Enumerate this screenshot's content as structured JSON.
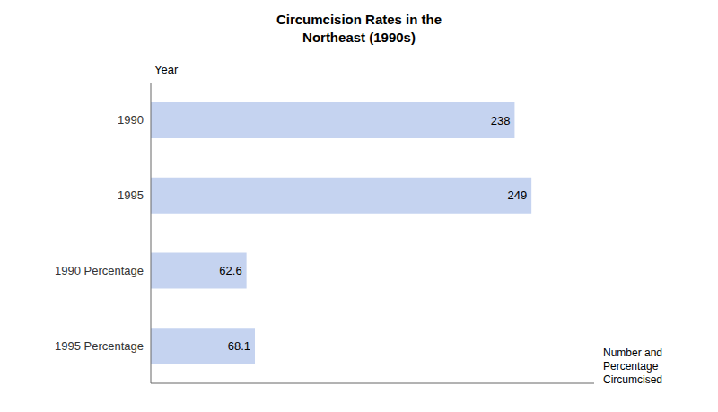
{
  "chart_data": {
    "type": "bar",
    "orientation": "horizontal",
    "title": "Circumcision Rates in the\nNortheast (1990s)",
    "categories": [
      "1990",
      "1995",
      "1990 Percentage",
      "1995 Percentage"
    ],
    "values": [
      238,
      249,
      62.6,
      68.1
    ],
    "color": "#c5d3f0",
    "xlim": [
      0,
      290
    ],
    "xlabel": "Number and\nPercentage\nCircumcised",
    "ylabel": "Year",
    "data_labels": true,
    "tick_labels": "y",
    "grid": false
  }
}
